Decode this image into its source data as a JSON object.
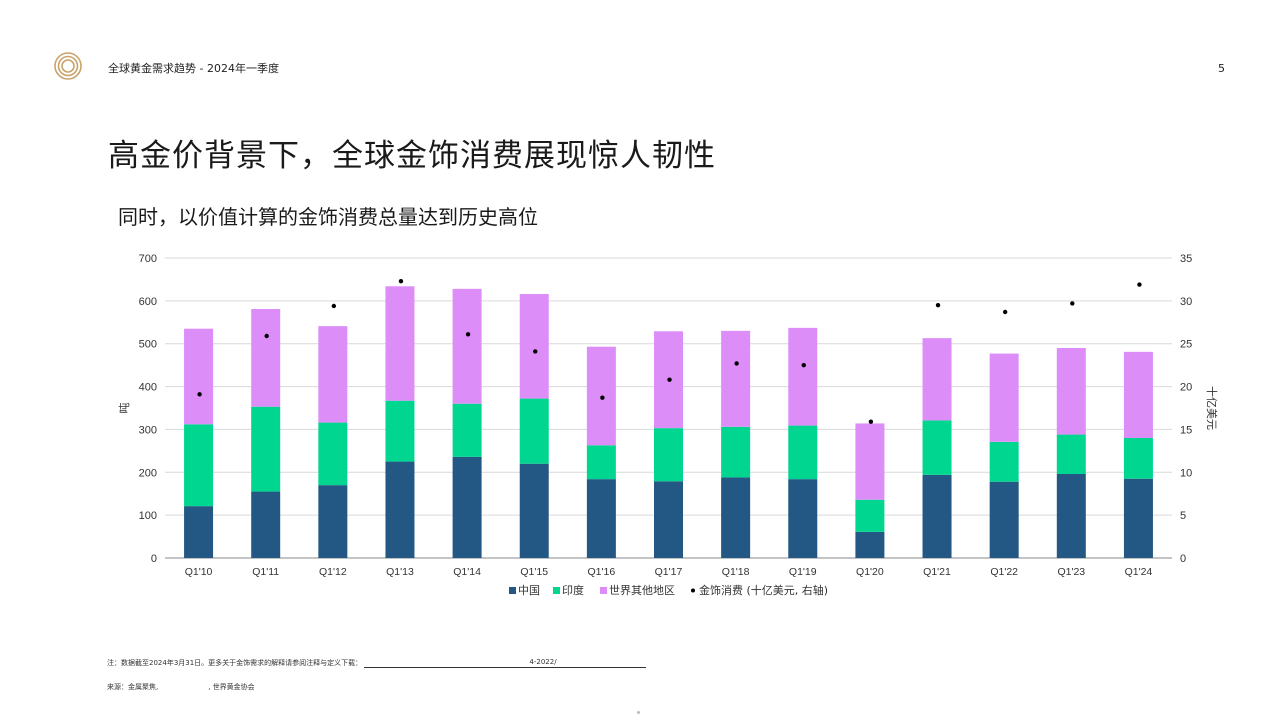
{
  "header": {
    "title": "全球黄金需求趋势 - 2024年一季度",
    "page_number": "5"
  },
  "slide": {
    "title": "高金价背景下，全球金饰消费展现惊人韧性",
    "subtitle": "同时，以价值计算的金饰消费总量达到历史高位"
  },
  "notes": {
    "note_prefix": "注：数据截至2024年3月31日。更多关于金饰需求的解释请参阅注释与定义下载：",
    "note_link_fragment": "4-2022/",
    "source": "来源：金属聚焦,",
    "source_tail": ", 世界黄金协会"
  },
  "colors": {
    "china": "#235784",
    "india": "#00d68f",
    "rest_of_world": "#dd8df7",
    "value_dot": "#000000",
    "logo_gold": "#c8a46a"
  },
  "chart_data": {
    "type": "bar",
    "stacked": true,
    "categories": [
      "Q1'10",
      "Q1'11",
      "Q1'12",
      "Q1'13",
      "Q1'14",
      "Q1'15",
      "Q1'16",
      "Q1'17",
      "Q1'18",
      "Q1'19",
      "Q1'20",
      "Q1'21",
      "Q1'22",
      "Q1'23",
      "Q1'24"
    ],
    "series": [
      {
        "name": "中国",
        "key": "china",
        "values": [
          121,
          155,
          170,
          225,
          236,
          220,
          184,
          179,
          188,
          184,
          61,
          194,
          178,
          196,
          185
        ]
      },
      {
        "name": "印度",
        "key": "india",
        "values": [
          191,
          198,
          146,
          142,
          124,
          152,
          79,
          124,
          118,
          125,
          75,
          127,
          93,
          92,
          95
        ]
      },
      {
        "name": "世界其他地区",
        "key": "rest_of_world",
        "values": [
          223,
          228,
          225,
          267,
          268,
          244,
          230,
          226,
          224,
          228,
          178,
          192,
          206,
          202,
          201
        ]
      }
    ],
    "secondary_series": {
      "name": "金饰消费 (十亿美元, 右轴)",
      "type": "scatter",
      "axis": "right",
      "values": [
        19.1,
        25.9,
        29.4,
        32.3,
        26.1,
        24.1,
        18.7,
        20.8,
        22.7,
        22.5,
        15.9,
        29.5,
        28.7,
        29.7,
        31.9
      ]
    },
    "ylabel": "吨",
    "y2label": "十亿美元",
    "ylim": [
      0,
      700
    ],
    "y2lim": [
      0,
      35
    ],
    "yticks": [
      "0",
      "100",
      "200",
      "300",
      "400",
      "500",
      "600",
      "700"
    ],
    "y2ticks": [
      "0",
      "5",
      "10",
      "15",
      "20",
      "25",
      "30",
      "35"
    ],
    "grid": true,
    "legend_position": "bottom"
  }
}
